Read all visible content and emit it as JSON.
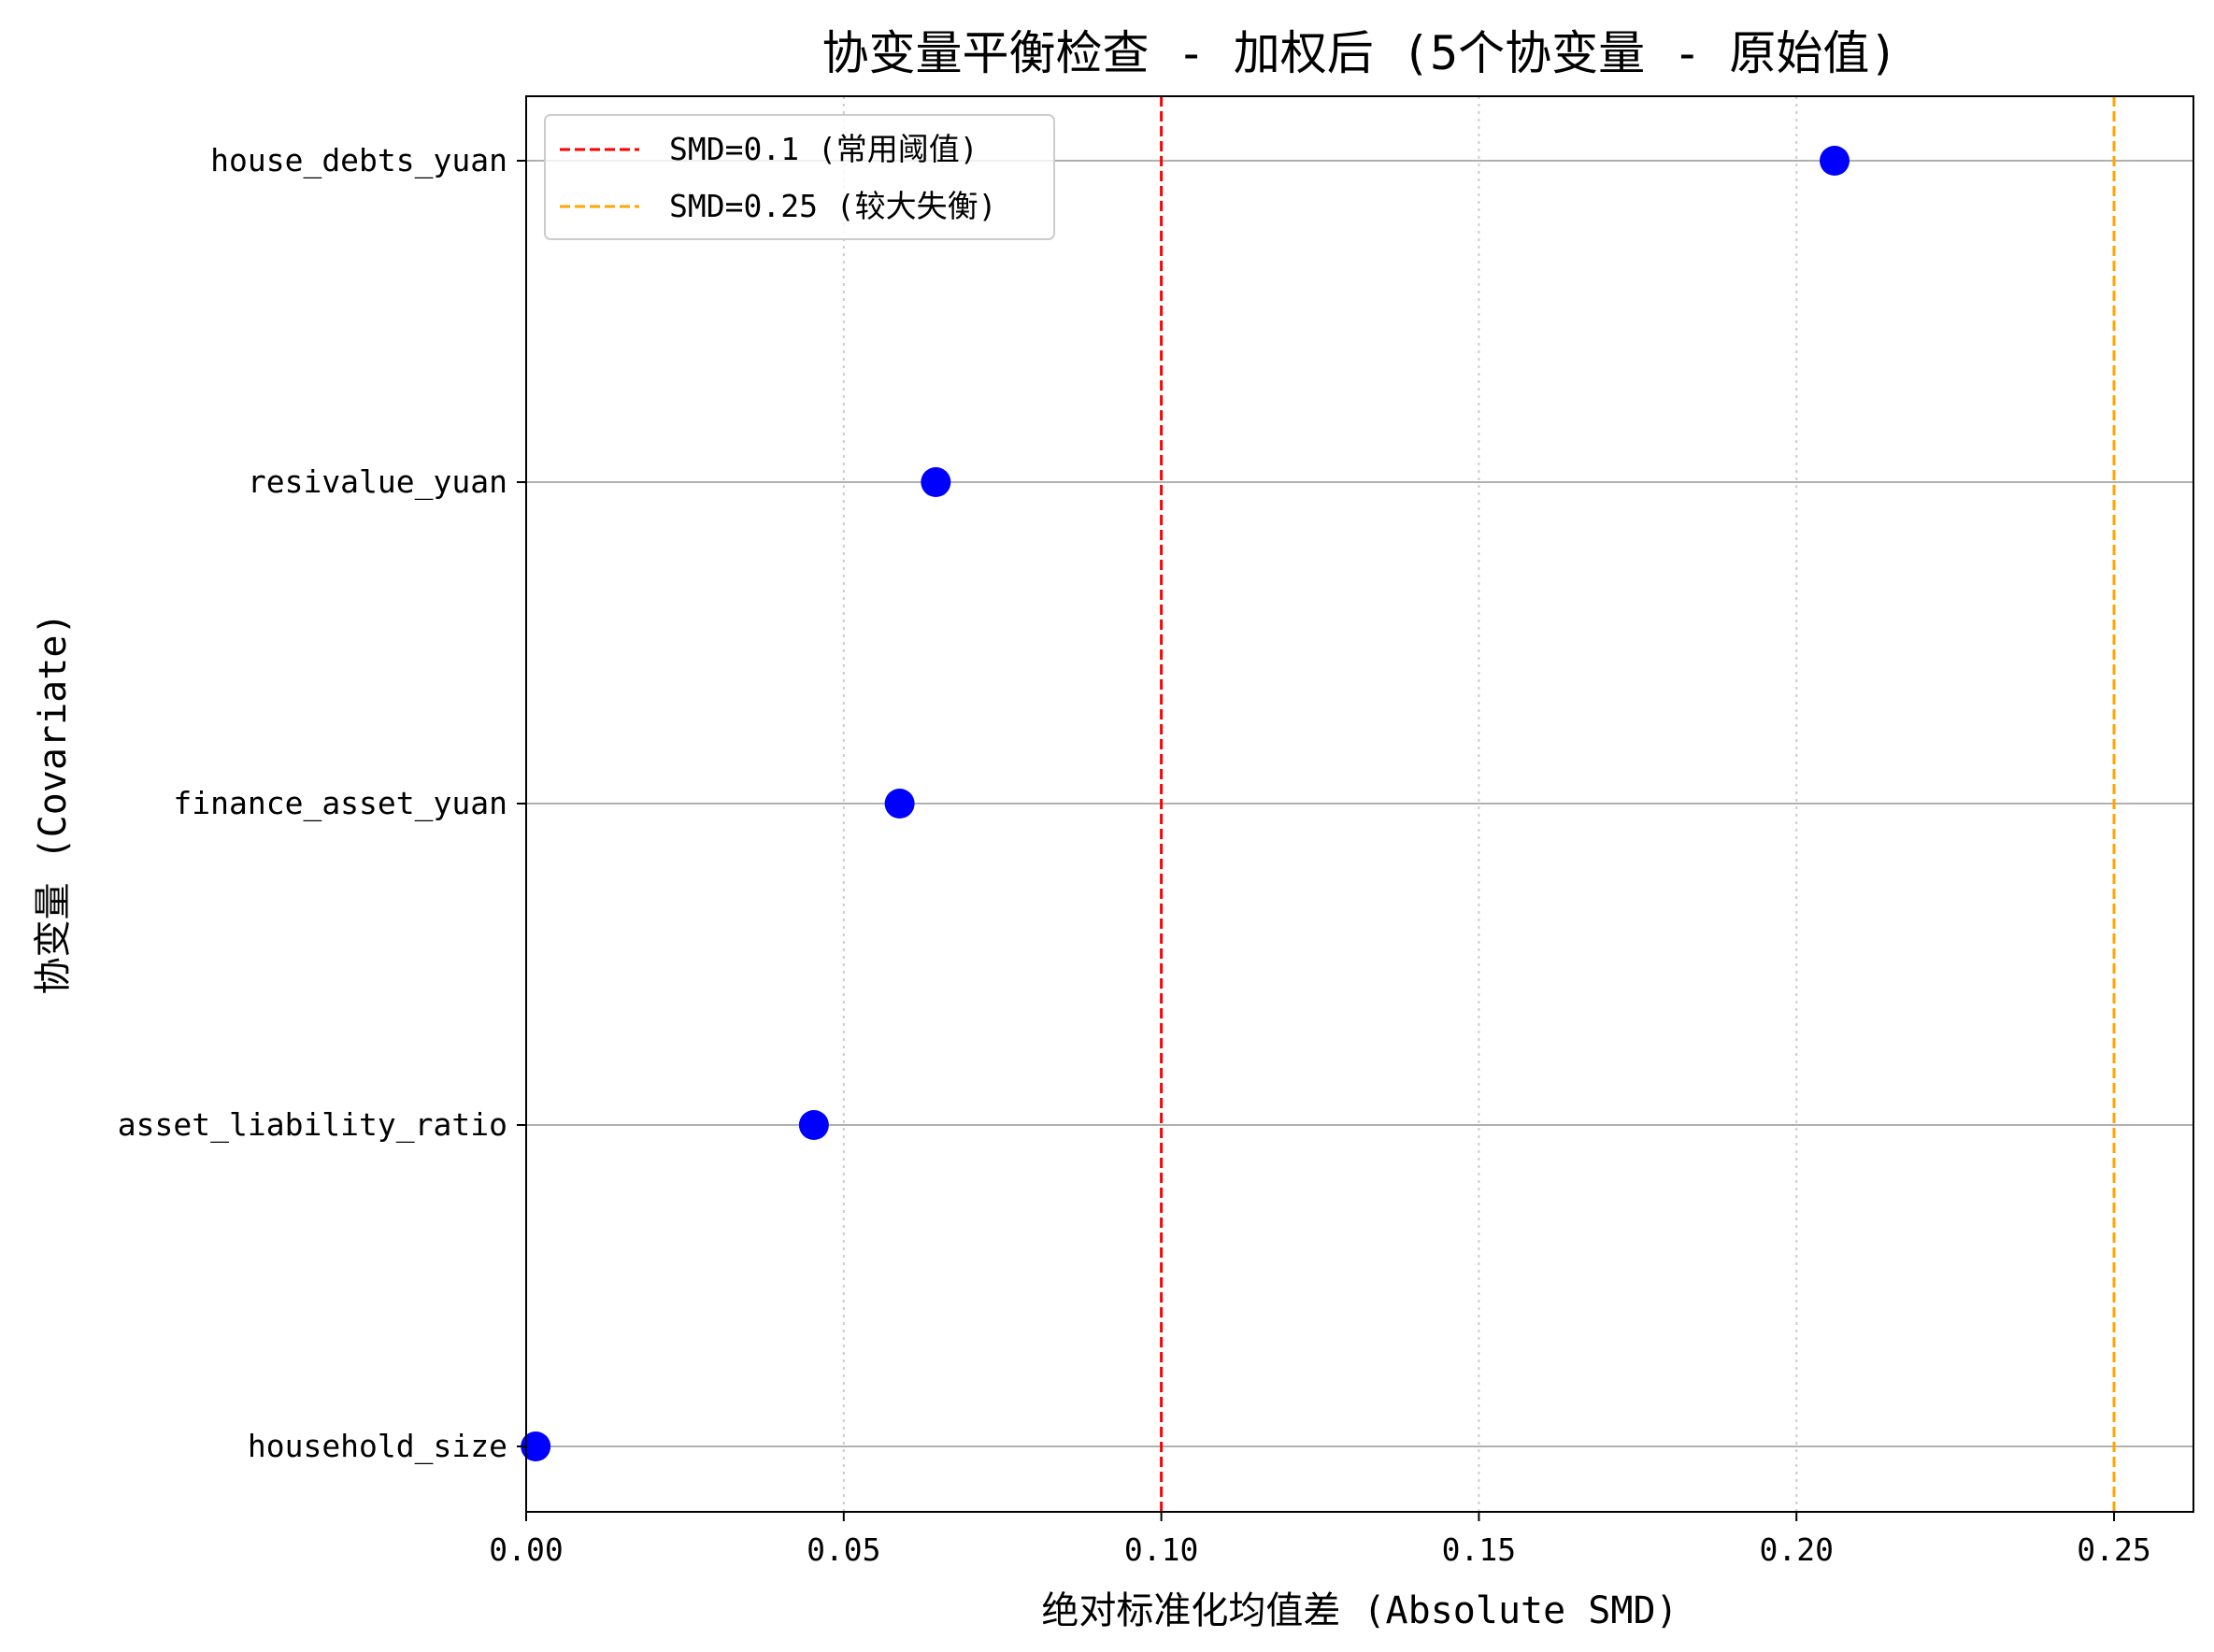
{
  "chart_data": {
    "type": "scatter",
    "title": "协变量平衡检查 - 加权后 (5个协变量 - 原始值)",
    "xlabel": "绝对标准化均值差 (Absolute SMD)",
    "ylabel": "协变量 (Covariate)",
    "xlim": [
      0,
      0.2625
    ],
    "x_ticks": [
      "0.00",
      "0.05",
      "0.10",
      "0.15",
      "0.20",
      "0.25"
    ],
    "categories": [
      "house_debts_yuan",
      "resivalue_yuan",
      "finance_asset_yuan",
      "asset_liability_ratio",
      "household_size"
    ],
    "values": [
      0.206,
      0.0645,
      0.0588,
      0.0453,
      0.0015
    ],
    "point_color": "#0000ff",
    "grid": "on",
    "thresholds": [
      {
        "value": 0.1,
        "color": "#ff0000",
        "label": "SMD=0.1 (常用阈值)"
      },
      {
        "value": 0.25,
        "color": "#ffa500",
        "label": "SMD=0.25 (较大失衡)"
      }
    ],
    "legend_position": "top-left"
  }
}
